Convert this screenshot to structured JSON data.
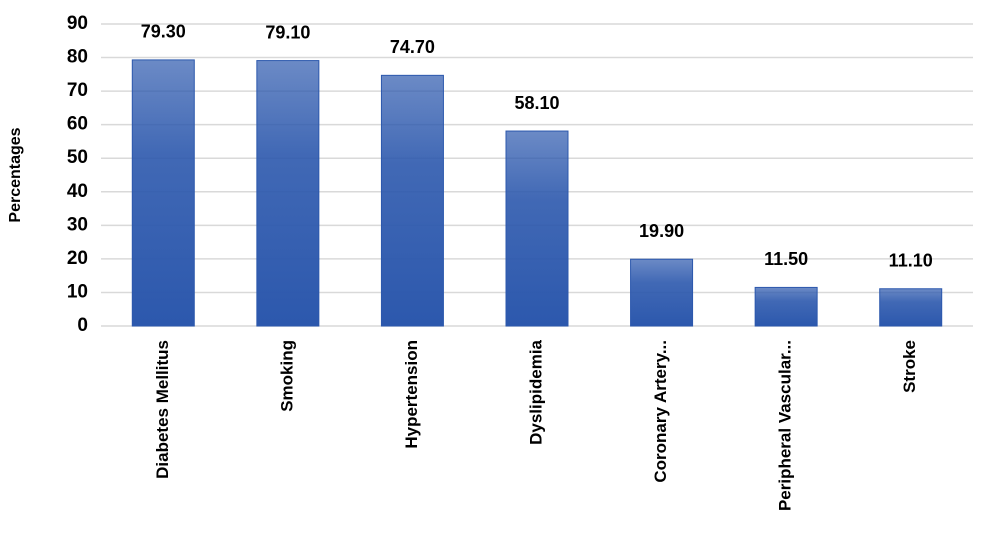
{
  "chart_data": {
    "type": "bar",
    "y_label": "Percentages",
    "categories": [
      "Diabetes Mellitus",
      "Smoking",
      "Hypertension",
      "Dyslipidemia",
      "Coronary Artery...",
      "Peripheral Vascular...",
      "Stroke"
    ],
    "values": [
      79.3,
      79.1,
      74.7,
      58.1,
      19.9,
      11.5,
      11.1
    ],
    "value_labels": [
      "79.30",
      "79.10",
      "74.70",
      "58.10",
      "19.90",
      "11.50",
      "11.10"
    ],
    "color": "#2c58ad",
    "ylim": [
      0,
      90
    ],
    "yticks": [
      0,
      10,
      20,
      30,
      40,
      50,
      60,
      70,
      80,
      90
    ],
    "grid": true
  }
}
